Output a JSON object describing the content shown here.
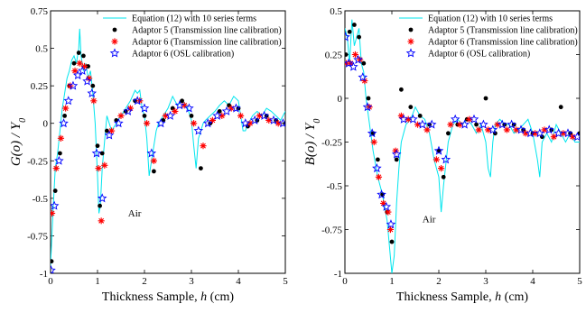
{
  "colors": {
    "equation": "#00e5ee",
    "adaptor5": "#000000",
    "adaptor6_tl": "#ff0000",
    "adaptor6_osl": "#0000ff"
  },
  "chart_data": [
    {
      "type": "line",
      "title": "",
      "xlabel": "Thickness Sample, h (cm)",
      "ylabel": "G(o)/Y0",
      "xlim": [
        0,
        5
      ],
      "ylim": [
        -1,
        0.75
      ],
      "xticks": [
        "0",
        "1",
        "2",
        "3",
        "4",
        "5"
      ],
      "yticks": [
        "-1",
        "-0.75",
        "-0.5",
        "-0.25",
        "0",
        "0.25",
        "0.5",
        "0.75"
      ],
      "annotation": "Air",
      "legend_position": "top-right",
      "series": [
        {
          "name": "Equation (12) with 10 series terms",
          "marker": "line",
          "x": [
            0,
            0.05,
            0.1,
            0.15,
            0.2,
            0.25,
            0.3,
            0.35,
            0.4,
            0.45,
            0.5,
            0.55,
            0.6,
            0.62,
            0.65,
            0.7,
            0.75,
            0.8,
            0.85,
            0.9,
            0.95,
            1.0,
            1.03,
            1.06,
            1.1,
            1.15,
            1.2,
            1.25,
            1.3,
            1.4,
            1.5,
            1.6,
            1.7,
            1.8,
            1.85,
            1.9,
            1.95,
            2.0,
            2.05,
            2.1,
            2.15,
            2.2,
            2.25,
            2.3,
            2.4,
            2.5,
            2.6,
            2.7,
            2.8,
            2.9,
            3.0,
            3.05,
            3.1,
            3.15,
            3.2,
            3.25,
            3.3,
            3.4,
            3.5,
            3.6,
            3.7,
            3.8,
            3.9,
            4.0,
            4.05,
            4.1,
            4.15,
            4.2,
            4.25,
            4.3,
            4.4,
            4.5,
            4.6,
            4.7,
            4.8,
            4.9,
            5.0
          ],
          "y": [
            -0.95,
            -0.6,
            -0.3,
            -0.2,
            -0.05,
            0.1,
            0.2,
            0.3,
            0.35,
            0.42,
            0.45,
            0.4,
            0.5,
            0.63,
            0.45,
            0.35,
            0.4,
            0.3,
            0.35,
            0.2,
            0.0,
            -0.35,
            -0.6,
            -0.55,
            -0.3,
            -0.12,
            0.05,
            0.0,
            -0.05,
            0.0,
            0.05,
            0.1,
            0.15,
            0.22,
            0.2,
            0.22,
            0.1,
            0.05,
            -0.1,
            -0.35,
            -0.25,
            -0.15,
            -0.05,
            0.0,
            0.05,
            0.1,
            0.18,
            0.12,
            0.15,
            0.12,
            0.02,
            -0.15,
            -0.3,
            -0.1,
            -0.05,
            0.0,
            0.02,
            0.05,
            0.08,
            0.12,
            0.15,
            0.12,
            0.18,
            0.15,
            0.05,
            -0.05,
            -0.05,
            0.0,
            0.02,
            0.05,
            0.08,
            0.05,
            0.1,
            0.08,
            0.05,
            0.02,
            0.08
          ]
        },
        {
          "name": "Adaptor 5 (Transmission line calibration)",
          "marker": "dot",
          "x": [
            0.02,
            0.1,
            0.2,
            0.3,
            0.4,
            0.5,
            0.6,
            0.7,
            0.8,
            0.9,
            1.0,
            1.05,
            1.1,
            1.2,
            1.4,
            1.6,
            1.8,
            2.0,
            2.2,
            2.4,
            2.6,
            2.8,
            3.0,
            3.2,
            3.4,
            3.6,
            3.8,
            4.0,
            4.2,
            4.4,
            4.6,
            4.8,
            5.0
          ],
          "y": [
            -0.92,
            -0.45,
            -0.2,
            0.05,
            0.25,
            0.4,
            0.47,
            0.45,
            0.38,
            0.25,
            -0.15,
            -0.55,
            -0.2,
            -0.05,
            0.02,
            0.08,
            0.15,
            0.05,
            -0.32,
            0.02,
            0.1,
            0.15,
            0.05,
            -0.3,
            0.0,
            0.08,
            0.12,
            0.1,
            -0.02,
            0.02,
            0.05,
            0.02,
            0.0
          ]
        },
        {
          "name": "Adaptor 6 (Transmission line calibration)",
          "marker": "asterisk",
          "x": [
            0.03,
            0.12,
            0.22,
            0.32,
            0.42,
            0.52,
            0.62,
            0.72,
            0.82,
            0.92,
            1.02,
            1.08,
            1.15,
            1.3,
            1.5,
            1.7,
            1.9,
            2.05,
            2.2,
            2.45,
            2.65,
            2.85,
            3.05,
            3.25,
            3.45,
            3.65,
            3.85,
            4.05,
            4.25,
            4.45,
            4.65,
            4.85
          ],
          "y": [
            -0.6,
            -0.3,
            -0.1,
            0.1,
            0.25,
            0.35,
            0.4,
            0.38,
            0.3,
            0.15,
            -0.3,
            -0.65,
            -0.28,
            -0.05,
            0.05,
            0.1,
            0.15,
            0.0,
            -0.25,
            0.05,
            0.08,
            0.12,
            0.0,
            -0.15,
            0.02,
            0.05,
            0.1,
            0.05,
            0.0,
            0.05,
            0.02,
            0.0
          ]
        },
        {
          "name": "Adaptor 6 (OSL calibration)",
          "marker": "star",
          "x": [
            0.01,
            0.08,
            0.18,
            0.28,
            0.38,
            0.48,
            0.58,
            0.68,
            0.78,
            0.88,
            0.98,
            1.1,
            1.25,
            1.45,
            1.65,
            1.85,
            2.0,
            2.15,
            2.35,
            2.55,
            2.75,
            2.95,
            3.15,
            3.35,
            3.55,
            3.75,
            3.95,
            4.15,
            4.35,
            4.55,
            4.75,
            4.95
          ],
          "y": [
            -0.98,
            -0.55,
            -0.25,
            0.0,
            0.15,
            0.25,
            0.32,
            0.35,
            0.28,
            0.2,
            -0.2,
            -0.5,
            -0.08,
            0.0,
            0.08,
            0.15,
            0.1,
            -0.2,
            0.0,
            0.05,
            0.12,
            0.1,
            -0.05,
            0.0,
            0.05,
            0.08,
            0.1,
            0.0,
            0.02,
            0.05,
            0.02,
            0.0
          ]
        }
      ]
    },
    {
      "type": "line",
      "title": "",
      "xlabel": "Thickness Sample, h (cm)",
      "ylabel": "B(o)/Y0",
      "xlim": [
        0,
        5
      ],
      "ylim": [
        -1,
        0.5
      ],
      "xticks": [
        "0",
        "1",
        "2",
        "3",
        "4",
        "5"
      ],
      "yticks": [
        "-1",
        "-0.75",
        "-0.5",
        "-0.25",
        "0",
        "0.25",
        "0.5"
      ],
      "annotation": "Air",
      "legend_position": "top-right",
      "series": [
        {
          "name": "Equation (12) with 10 series terms",
          "marker": "line",
          "x": [
            0,
            0.05,
            0.1,
            0.15,
            0.2,
            0.25,
            0.3,
            0.35,
            0.4,
            0.45,
            0.5,
            0.6,
            0.7,
            0.8,
            0.9,
            0.95,
            1.0,
            1.05,
            1.1,
            1.15,
            1.2,
            1.3,
            1.4,
            1.5,
            1.6,
            1.7,
            1.8,
            1.9,
            2.0,
            2.05,
            2.1,
            2.2,
            2.3,
            2.4,
            2.5,
            2.6,
            2.7,
            2.8,
            2.9,
            3.0,
            3.05,
            3.1,
            3.15,
            3.2,
            3.3,
            3.4,
            3.5,
            3.6,
            3.7,
            3.8,
            3.9,
            4.0,
            4.1,
            4.15,
            4.2,
            4.3,
            4.4,
            4.5,
            4.6,
            4.7,
            4.8,
            4.9,
            5.0
          ],
          "y": [
            0.4,
            0.35,
            0.2,
            0.45,
            0.3,
            0.35,
            0.4,
            0.2,
            0.15,
            0.0,
            -0.1,
            -0.3,
            -0.45,
            -0.55,
            -0.7,
            -0.85,
            -1.0,
            -0.9,
            -0.6,
            -0.4,
            -0.25,
            -0.15,
            -0.12,
            -0.05,
            -0.1,
            -0.12,
            -0.2,
            -0.35,
            -0.45,
            -0.65,
            -0.5,
            -0.25,
            -0.15,
            -0.12,
            -0.15,
            -0.12,
            -0.15,
            -0.2,
            -0.15,
            -0.25,
            -0.4,
            -0.45,
            -0.25,
            -0.15,
            -0.12,
            -0.15,
            -0.15,
            -0.2,
            -0.18,
            -0.15,
            -0.12,
            -0.2,
            -0.35,
            -0.45,
            -0.25,
            -0.2,
            -0.25,
            -0.15,
            -0.2,
            -0.25,
            -0.2,
            -0.25,
            -0.25
          ]
        },
        {
          "name": "Adaptor 5 (Transmission line calibration)",
          "marker": "dot",
          "x": [
            0.02,
            0.1,
            0.2,
            0.3,
            0.4,
            0.5,
            0.6,
            0.7,
            0.8,
            0.9,
            1.0,
            1.1,
            1.2,
            1.4,
            1.6,
            1.8,
            2.0,
            2.1,
            2.2,
            2.4,
            2.6,
            2.8,
            3.0,
            3.2,
            3.4,
            3.6,
            3.8,
            4.0,
            4.2,
            4.4,
            4.6,
            4.8,
            5.0
          ],
          "y": [
            0.25,
            0.38,
            0.42,
            0.35,
            0.2,
            0.0,
            -0.2,
            -0.35,
            -0.55,
            -0.65,
            -0.82,
            -0.35,
            0.05,
            -0.05,
            -0.1,
            -0.15,
            -0.3,
            -0.45,
            -0.2,
            -0.15,
            -0.12,
            -0.15,
            0.0,
            -0.2,
            -0.15,
            -0.15,
            -0.18,
            -0.2,
            -0.22,
            -0.18,
            -0.05,
            -0.2,
            -0.2
          ]
        },
        {
          "name": "Adaptor 6 (Transmission line calibration)",
          "marker": "asterisk",
          "x": [
            0.03,
            0.12,
            0.22,
            0.32,
            0.42,
            0.52,
            0.62,
            0.72,
            0.82,
            0.92,
            0.97,
            1.08,
            1.2,
            1.35,
            1.55,
            1.75,
            1.95,
            2.05,
            2.25,
            2.45,
            2.65,
            2.85,
            3.05,
            3.25,
            3.45,
            3.65,
            3.85,
            4.05,
            4.25,
            4.45,
            4.65,
            4.85
          ],
          "y": [
            0.2,
            0.2,
            0.25,
            0.22,
            0.1,
            -0.05,
            -0.25,
            -0.45,
            -0.6,
            -0.65,
            -0.75,
            -0.3,
            -0.1,
            -0.12,
            -0.15,
            -0.18,
            -0.35,
            -0.4,
            -0.15,
            -0.15,
            -0.12,
            -0.18,
            -0.18,
            -0.15,
            -0.18,
            -0.18,
            -0.2,
            -0.2,
            -0.18,
            -0.22,
            -0.2,
            -0.22
          ]
        },
        {
          "name": "Adaptor 6 (OSL calibration)",
          "marker": "star",
          "x": [
            0.01,
            0.08,
            0.18,
            0.28,
            0.38,
            0.48,
            0.58,
            0.68,
            0.78,
            0.88,
            0.98,
            1.1,
            1.25,
            1.45,
            1.65,
            1.85,
            2.0,
            2.15,
            2.35,
            2.55,
            2.75,
            2.95,
            3.15,
            3.35,
            3.55,
            3.75,
            3.95,
            4.15,
            4.35,
            4.55,
            4.75,
            4.95
          ],
          "y": [
            0.35,
            0.2,
            0.18,
            0.22,
            0.12,
            -0.05,
            -0.2,
            -0.4,
            -0.55,
            -0.62,
            -0.72,
            -0.32,
            -0.12,
            -0.12,
            -0.15,
            -0.15,
            -0.3,
            -0.35,
            -0.12,
            -0.15,
            -0.12,
            -0.15,
            -0.18,
            -0.15,
            -0.15,
            -0.18,
            -0.2,
            -0.2,
            -0.18,
            -0.2,
            -0.2,
            -0.22
          ]
        }
      ]
    }
  ]
}
